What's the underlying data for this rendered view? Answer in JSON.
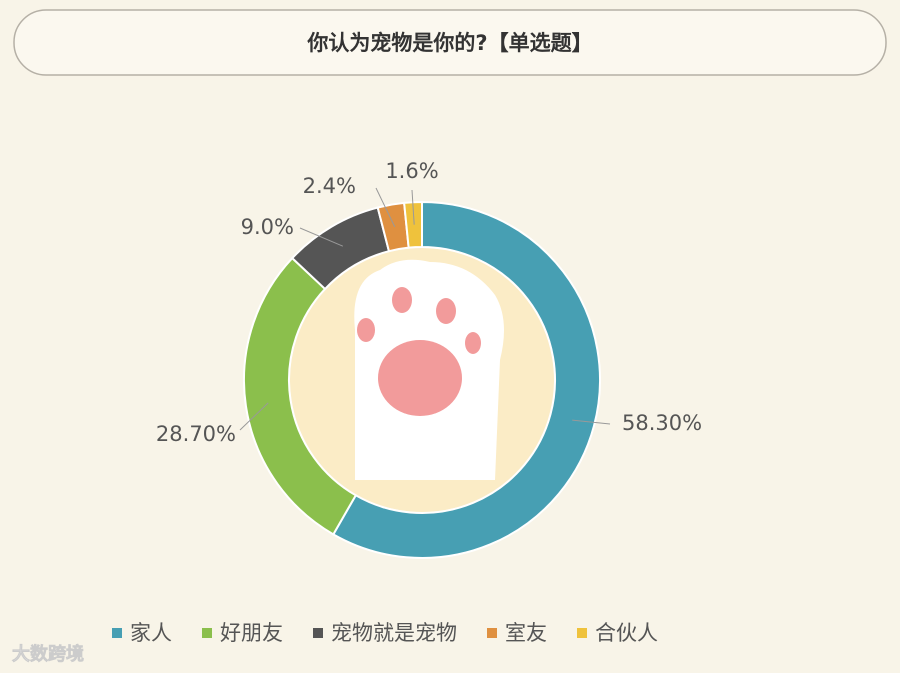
{
  "chart_data": {
    "type": "donut",
    "title": "你认为宠物是你的?【单选题】",
    "categories": [
      "家人",
      "好朋友",
      "宠物就是宠物",
      "室友",
      "合伙人"
    ],
    "values": [
      58.3,
      28.7,
      9.0,
      2.4,
      1.6
    ],
    "value_labels": [
      "58.30%",
      "28.70%",
      "9.0%",
      "2.4%",
      "1.6%"
    ],
    "colors": [
      "#479fb3",
      "#8bbf4c",
      "#555555",
      "#df9040",
      "#efc23c"
    ],
    "legend": "bottom"
  },
  "watermark": "大数跨境"
}
